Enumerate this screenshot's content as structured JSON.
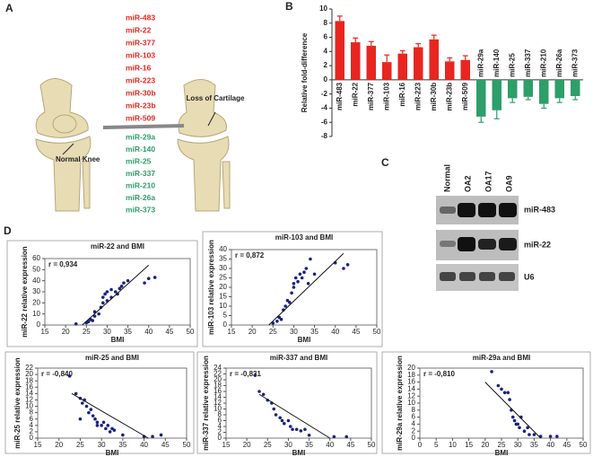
{
  "panel_labels": [
    "A",
    "B",
    "C",
    "D"
  ],
  "panel_a": {
    "up": [
      "miR-483",
      "miR-22",
      "miR-377",
      "miR-103",
      "miR-16",
      "miR-223",
      "miR-30b",
      "miR-23b",
      "miR-509"
    ],
    "down": [
      "miR-29a",
      "miR-140",
      "miR-25",
      "miR-337",
      "miR-210",
      "miR-26a",
      "miR-373"
    ],
    "normal_label": "Normal Knee",
    "loss_label": "Loss of Cartilage"
  },
  "panel_c": {
    "columns": [
      "Normal",
      "OA2",
      "OA17",
      "OA9"
    ],
    "rows": [
      "miR-483",
      "miR-22",
      "U6"
    ]
  },
  "chart_data": [
    {
      "type": "bar",
      "y_label": "Relative fold-difference",
      "categories": [
        "miR-483",
        "miR-22",
        "miR-377",
        "miR-103",
        "miR-16",
        "miR-223",
        "miR-30b",
        "miR-23b",
        "miR-509",
        "miR-29a",
        "miR-140",
        "miR-25",
        "miR-337",
        "miR-210",
        "miR-26a",
        "miR-373"
      ],
      "values": [
        8.3,
        5.3,
        4.8,
        2.5,
        3.7,
        4.6,
        5.7,
        2.6,
        2.8,
        -5.2,
        -4.3,
        -2.6,
        -2.4,
        -3.4,
        -2.6,
        -2.3
      ],
      "errors": [
        0.7,
        0.6,
        0.6,
        1.0,
        0.4,
        0.5,
        0.6,
        0.5,
        0.6,
        0.8,
        1.2,
        0.6,
        0.4,
        0.6,
        0.6,
        0.5
      ],
      "colors": [
        "#e8261f",
        "#e8261f",
        "#e8261f",
        "#e8261f",
        "#e8261f",
        "#e8261f",
        "#e8261f",
        "#e8261f",
        "#e8261f",
        "#2e9e6a",
        "#2e9e6a",
        "#2e9e6a",
        "#2e9e6a",
        "#2e9e6a",
        "#2e9e6a",
        "#2e9e6a"
      ],
      "ylim": [
        -8,
        10
      ],
      "yticks": [
        -8,
        -6,
        -4,
        -2,
        0,
        2,
        4,
        6,
        8,
        10
      ]
    },
    {
      "type": "scatter",
      "title": "miR-22 and BMI",
      "x_label": "BMI",
      "y_label": "miR-22 relative expression",
      "annotation": "r = 0,934",
      "color": "#1a237e",
      "x": [
        22.5,
        25,
        25.5,
        26,
        26.5,
        27,
        27,
        28,
        28.5,
        29,
        29,
        29.5,
        30,
        30,
        31,
        31,
        32,
        32.5,
        33,
        33.5,
        34,
        35,
        39,
        40,
        41.5
      ],
      "values": [
        1,
        2,
        3,
        5,
        4,
        8,
        12,
        10,
        16,
        20,
        25,
        28,
        22,
        30,
        25,
        32,
        30,
        28,
        33,
        35,
        38,
        40,
        38,
        42,
        43
      ],
      "trendline": {
        "x": [
          24,
          40
        ],
        "values": [
          0,
          54
        ]
      },
      "xlim": [
        15,
        50
      ],
      "xticks": [
        15,
        20,
        25,
        30,
        35,
        40,
        45,
        50
      ],
      "ylim": [
        0,
        60
      ],
      "yticks": [
        0,
        10,
        20,
        30,
        40,
        50,
        60
      ]
    },
    {
      "type": "scatter",
      "title": "miR-103 and BMI",
      "x_label": "BMI",
      "y_label": "miR-103 relative expression",
      "annotation": "r = 0,872",
      "color": "#1a237e",
      "x": [
        25,
        26,
        26.5,
        27,
        27.5,
        28,
        28.5,
        29,
        29.5,
        30,
        30,
        30.5,
        31,
        31.5,
        32,
        32.5,
        33,
        33.5,
        34,
        35,
        40,
        42,
        43
      ],
      "values": [
        1,
        2,
        4,
        3,
        8,
        10,
        13,
        12,
        17,
        20,
        22,
        25,
        23,
        27,
        25,
        28,
        30,
        22,
        35,
        27,
        33,
        30,
        32
      ],
      "trendline": {
        "x": [
          24,
          42
        ],
        "values": [
          0,
          38
        ]
      },
      "xlim": [
        15,
        50
      ],
      "xticks": [
        15,
        20,
        25,
        30,
        35,
        40,
        45,
        50
      ],
      "ylim": [
        0,
        40
      ],
      "yticks": [
        0,
        5,
        10,
        15,
        20,
        25,
        30,
        35,
        40
      ]
    },
    {
      "type": "scatter",
      "title": "miR-25 and BMI",
      "x_label": "BMI",
      "y_label": "miR-25 relative expression",
      "annotation": "r = -0,840",
      "color": "#1a237e",
      "x": [
        22.5,
        24,
        25,
        25.5,
        26,
        26.5,
        27,
        27.5,
        25,
        28,
        28.5,
        29,
        29,
        30,
        30.5,
        31,
        31.5,
        32,
        32.5,
        33,
        35,
        40,
        42,
        44
      ],
      "values": [
        19.5,
        14,
        12.5,
        11,
        12,
        10,
        8,
        9,
        6,
        7,
        6,
        5,
        4,
        4,
        5,
        3,
        4,
        2,
        3,
        2.5,
        1,
        0.5,
        0.5,
        1
      ],
      "trendline": {
        "x": [
          23,
          41
        ],
        "values": [
          14,
          0
        ]
      },
      "xlim": [
        15,
        50
      ],
      "xticks": [
        15,
        20,
        25,
        30,
        35,
        40,
        45,
        50
      ],
      "ylim": [
        0,
        22
      ],
      "yticks": [
        0,
        2,
        4,
        6,
        8,
        10,
        12,
        14,
        16,
        18,
        20,
        22
      ]
    },
    {
      "type": "scatter",
      "title": "miR-337 and BMI",
      "x_label": "BMI",
      "y_label": "miR-337 relative expression",
      "annotation": "r = -0,831",
      "color": "#1a237e",
      "x": [
        22,
        23,
        24,
        25,
        26,
        26.5,
        27,
        28,
        28.5,
        29,
        30,
        30.5,
        31,
        32,
        33,
        34,
        35,
        41,
        44
      ],
      "values": [
        21.5,
        16,
        15,
        13,
        12,
        10,
        8,
        7,
        6,
        5,
        6,
        4,
        3,
        3,
        2.5,
        3,
        1,
        0.5,
        0.5
      ],
      "trendline": {
        "x": [
          23,
          40
        ],
        "values": [
          15,
          0
        ]
      },
      "xlim": [
        15,
        50
      ],
      "xticks": [
        15,
        20,
        25,
        30,
        35,
        40,
        45,
        50
      ],
      "ylim": [
        0,
        24
      ],
      "yticks": [
        0,
        2,
        4,
        6,
        8,
        10,
        12,
        14,
        16,
        18,
        20,
        22,
        24
      ]
    },
    {
      "type": "scatter",
      "title": "miR-29a and BMI",
      "x_label": "BMI",
      "y_label": "miR-29a relative expression",
      "annotation": "r = -0,810",
      "color": "#1a237e",
      "x": [
        22,
        24,
        25,
        26,
        27,
        27.5,
        28,
        28.5,
        29,
        29.5,
        30,
        30.5,
        31,
        32,
        33,
        33.5,
        35,
        37,
        40,
        42
      ],
      "values": [
        19,
        15,
        14,
        13,
        13,
        11,
        8,
        6,
        5,
        4,
        4,
        3,
        6,
        2,
        3,
        1,
        1,
        0.5,
        0.5,
        0.5
      ],
      "trendline": {
        "x": [
          20,
          37
        ],
        "values": [
          16,
          0
        ]
      },
      "xlim": [
        0,
        50
      ],
      "xticks": [
        0,
        5,
        10,
        15,
        20,
        25,
        30,
        35,
        40,
        45,
        50
      ],
      "ylim": [
        0,
        20
      ],
      "yticks": [
        0,
        2,
        4,
        6,
        8,
        10,
        12,
        14,
        16,
        18,
        20
      ]
    }
  ]
}
